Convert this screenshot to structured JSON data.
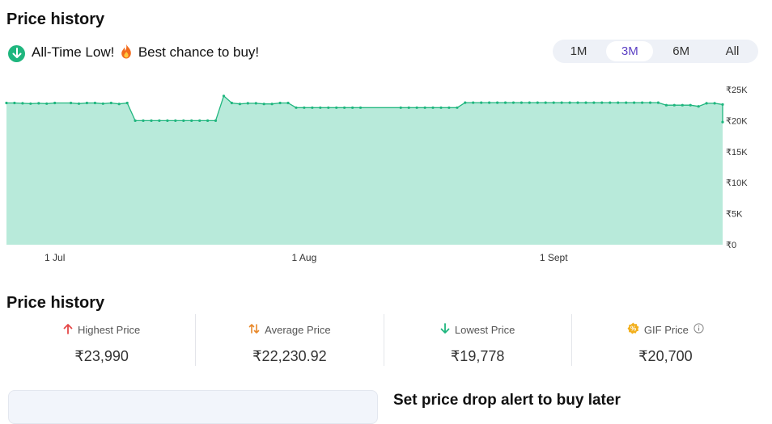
{
  "header": {
    "title": "Price history"
  },
  "banner": {
    "text_before": "All-Time Low!",
    "text_after": "Best chance to buy!"
  },
  "range_tabs": [
    {
      "label": "1M",
      "active": false
    },
    {
      "label": "3M",
      "active": true
    },
    {
      "label": "6M",
      "active": false
    },
    {
      "label": "All",
      "active": false
    }
  ],
  "chart_data": {
    "type": "area",
    "y_ticks": [
      {
        "value": 25000,
        "label": "₹25K"
      },
      {
        "value": 20000,
        "label": "₹20K"
      },
      {
        "value": 15000,
        "label": "₹15K"
      },
      {
        "value": 10000,
        "label": "₹10K"
      },
      {
        "value": 5000,
        "label": "₹5K"
      },
      {
        "value": 0,
        "label": "₹0"
      }
    ],
    "ylim": [
      0,
      25000
    ],
    "x_start": "2024-06-25",
    "x_end": "2024-09-22",
    "x_ticks": [
      {
        "date": "2024-07-01",
        "label": "1 Jul"
      },
      {
        "date": "2024-08-01",
        "label": "1 Aug"
      },
      {
        "date": "2024-09-01",
        "label": "1 Sept"
      }
    ],
    "series": [
      {
        "points": [
          [
            "2024-06-25",
            22850
          ],
          [
            "2024-06-26",
            22850
          ],
          [
            "2024-06-27",
            22800
          ],
          [
            "2024-06-28",
            22750
          ],
          [
            "2024-06-29",
            22800
          ],
          [
            "2024-06-30",
            22750
          ],
          [
            "2024-07-01",
            22850
          ],
          [
            "2024-07-03",
            22850
          ],
          [
            "2024-07-04",
            22750
          ],
          [
            "2024-07-05",
            22850
          ],
          [
            "2024-07-06",
            22850
          ],
          [
            "2024-07-07",
            22750
          ],
          [
            "2024-07-08",
            22850
          ],
          [
            "2024-07-09",
            22700
          ],
          [
            "2024-07-10",
            22850
          ],
          [
            "2024-07-11",
            20000
          ],
          [
            "2024-07-12",
            20000
          ],
          [
            "2024-07-13",
            20000
          ],
          [
            "2024-07-14",
            20000
          ],
          [
            "2024-07-15",
            20000
          ],
          [
            "2024-07-16",
            20000
          ],
          [
            "2024-07-17",
            20000
          ],
          [
            "2024-07-18",
            20000
          ],
          [
            "2024-07-19",
            20000
          ],
          [
            "2024-07-20",
            20000
          ],
          [
            "2024-07-21",
            20000
          ],
          [
            "2024-07-22",
            23990
          ],
          [
            "2024-07-23",
            22850
          ],
          [
            "2024-07-24",
            22700
          ],
          [
            "2024-07-25",
            22800
          ],
          [
            "2024-07-26",
            22800
          ],
          [
            "2024-07-27",
            22700
          ],
          [
            "2024-07-28",
            22700
          ],
          [
            "2024-07-29",
            22850
          ],
          [
            "2024-07-30",
            22850
          ],
          [
            "2024-07-31",
            22100
          ],
          [
            "2024-08-01",
            22100
          ],
          [
            "2024-08-02",
            22100
          ],
          [
            "2024-08-03",
            22100
          ],
          [
            "2024-08-04",
            22100
          ],
          [
            "2024-08-05",
            22100
          ],
          [
            "2024-08-06",
            22100
          ],
          [
            "2024-08-07",
            22100
          ],
          [
            "2024-08-08",
            22100
          ],
          [
            "2024-08-13",
            22100
          ],
          [
            "2024-08-14",
            22100
          ],
          [
            "2024-08-15",
            22100
          ],
          [
            "2024-08-16",
            22100
          ],
          [
            "2024-08-17",
            22100
          ],
          [
            "2024-08-18",
            22100
          ],
          [
            "2024-08-19",
            22100
          ],
          [
            "2024-08-20",
            22100
          ],
          [
            "2024-08-21",
            22900
          ],
          [
            "2024-08-22",
            22900
          ],
          [
            "2024-08-23",
            22900
          ],
          [
            "2024-08-24",
            22900
          ],
          [
            "2024-08-25",
            22900
          ],
          [
            "2024-08-26",
            22900
          ],
          [
            "2024-08-27",
            22900
          ],
          [
            "2024-08-28",
            22900
          ],
          [
            "2024-08-29",
            22900
          ],
          [
            "2024-08-30",
            22900
          ],
          [
            "2024-08-31",
            22900
          ],
          [
            "2024-09-01",
            22900
          ],
          [
            "2024-09-02",
            22900
          ],
          [
            "2024-09-03",
            22900
          ],
          [
            "2024-09-04",
            22900
          ],
          [
            "2024-09-05",
            22900
          ],
          [
            "2024-09-06",
            22900
          ],
          [
            "2024-09-07",
            22900
          ],
          [
            "2024-09-08",
            22900
          ],
          [
            "2024-09-09",
            22900
          ],
          [
            "2024-09-10",
            22900
          ],
          [
            "2024-09-11",
            22900
          ],
          [
            "2024-09-12",
            22900
          ],
          [
            "2024-09-13",
            22900
          ],
          [
            "2024-09-14",
            22900
          ],
          [
            "2024-09-15",
            22500
          ],
          [
            "2024-09-16",
            22500
          ],
          [
            "2024-09-17",
            22500
          ],
          [
            "2024-09-18",
            22500
          ],
          [
            "2024-09-19",
            22300
          ],
          [
            "2024-09-20",
            22800
          ],
          [
            "2024-09-21",
            22800
          ],
          [
            "2024-09-22",
            22600
          ],
          [
            "2024-09-23",
            19778
          ]
        ]
      }
    ],
    "colors": {
      "line": "#1fb67e",
      "fill": "#b8eada"
    },
    "grid": false
  },
  "stats_section": {
    "title": "Price history",
    "items": [
      {
        "label": "Highest Price",
        "value": "₹23,990",
        "icon": "arrow-up-icon",
        "color": "#e54848"
      },
      {
        "label": "Average Price",
        "value": "₹22,230.92",
        "icon": "swap-vertical-icon",
        "color": "#e8892b"
      },
      {
        "label": "Lowest Price",
        "value": "₹19,778",
        "icon": "arrow-down-icon",
        "color": "#1fb67e"
      },
      {
        "label": "GIF Price",
        "value": "₹20,700",
        "icon": "badge-icon",
        "color": "#f2b01e"
      }
    ]
  },
  "alert": {
    "title": "Set price drop alert to buy later"
  }
}
